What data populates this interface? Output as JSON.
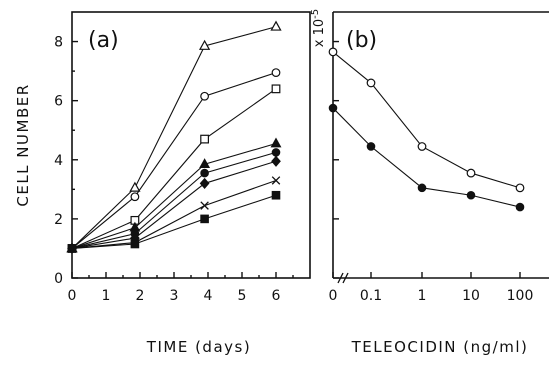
{
  "chart_data": [
    {
      "type": "line",
      "panel_label": "(a)",
      "xlabel": "TIME (days)",
      "ylabel": "CELL NUMBER",
      "y_unit": "x 10",
      "y_unit_exponent": "-5",
      "xlim": [
        0,
        7
      ],
      "ylim": [
        0,
        9
      ],
      "x_ticks": [
        0,
        1,
        2,
        3,
        4,
        5,
        6
      ],
      "y_ticks": [
        0,
        2,
        4,
        6,
        8
      ],
      "x": [
        0,
        1.85,
        3.9,
        6
      ],
      "series": [
        {
          "marker": "open-triangle",
          "values": [
            1.0,
            3.05,
            7.85,
            8.5
          ]
        },
        {
          "marker": "open-circle",
          "values": [
            1.0,
            2.75,
            6.15,
            6.95
          ]
        },
        {
          "marker": "open-square",
          "values": [
            1.0,
            1.95,
            4.7,
            6.4
          ]
        },
        {
          "marker": "filled-triangle",
          "values": [
            1.0,
            1.7,
            3.85,
            4.55
          ]
        },
        {
          "marker": "filled-circle",
          "values": [
            1.0,
            1.5,
            3.55,
            4.25
          ]
        },
        {
          "marker": "filled-diamond",
          "values": [
            1.0,
            1.35,
            3.2,
            3.95
          ]
        },
        {
          "marker": "cross",
          "values": [
            1.0,
            1.2,
            2.45,
            3.3
          ]
        },
        {
          "marker": "filled-square",
          "values": [
            1.0,
            1.15,
            2.0,
            2.8
          ]
        }
      ]
    },
    {
      "type": "line",
      "panel_label": "(b)",
      "xlabel": "TELEOCIDIN (ng/ml)",
      "ylim": [
        0,
        9
      ],
      "categories": [
        "0",
        "0.1",
        "1",
        "10",
        "100"
      ],
      "axis_break": true,
      "series": [
        {
          "marker": "open-circle",
          "values": [
            7.65,
            6.6,
            4.45,
            3.55,
            3.05
          ]
        },
        {
          "marker": "filled-circle",
          "values": [
            5.75,
            4.45,
            3.05,
            2.8,
            2.4
          ]
        }
      ]
    }
  ]
}
